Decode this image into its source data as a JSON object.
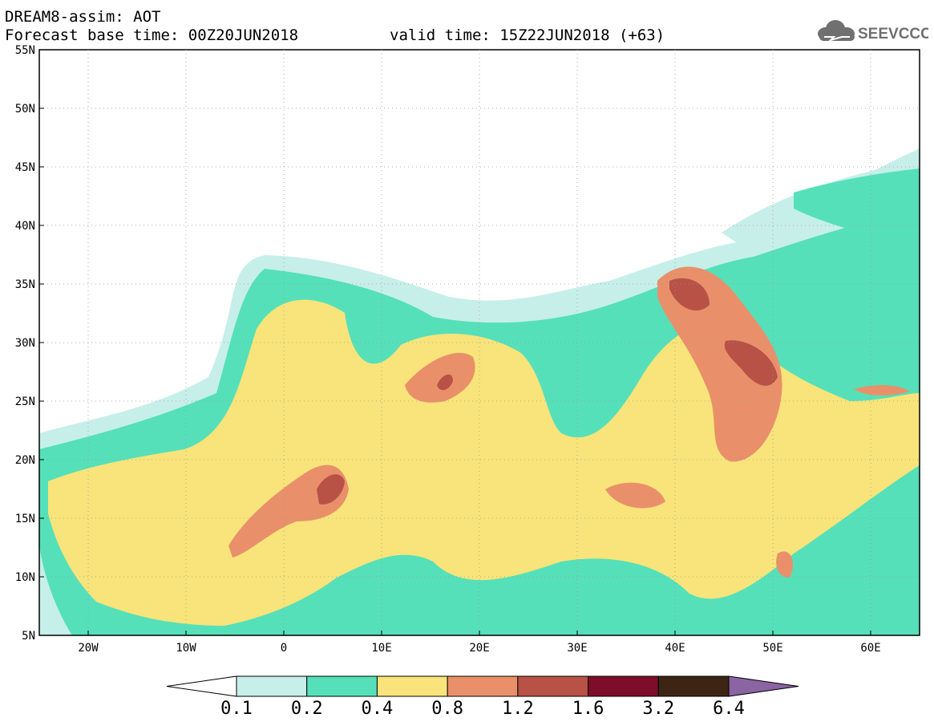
{
  "header": {
    "title": "DREAM8-assim: AOT",
    "base_time": "Forecast base time: 00Z20JUN2018",
    "valid_time": "valid time: 15Z22JUN2018 (+63)",
    "logo_text": "SEEVCCC",
    "logo_icon": "cloud-icon"
  },
  "axes": {
    "lat_labels": [
      "55N",
      "50N",
      "45N",
      "40N",
      "35N",
      "30N",
      "25N",
      "20N",
      "15N",
      "10N",
      "5N"
    ],
    "lon_labels": [
      "20W",
      "10W",
      "0",
      "10E",
      "20E",
      "30E",
      "40E",
      "50E",
      "60E"
    ]
  },
  "colorbar": {
    "labels": [
      "0.1",
      "0.2",
      "0.4",
      "0.8",
      "1.2",
      "1.6",
      "3.2",
      "6.4"
    ],
    "colors": [
      "#ffffff",
      "#c6efe9",
      "#55e0b9",
      "#f8e47a",
      "#e9906a",
      "#b85246",
      "#7d0d2a",
      "#3d2414",
      "#8a64a3"
    ]
  },
  "map_colors": {
    "aot_01_02": "#c6efe9",
    "aot_02_04": "#55e0b9",
    "aot_04_08": "#f8e47a",
    "aot_08_12": "#e9906a",
    "aot_12_16": "#b85246"
  }
}
